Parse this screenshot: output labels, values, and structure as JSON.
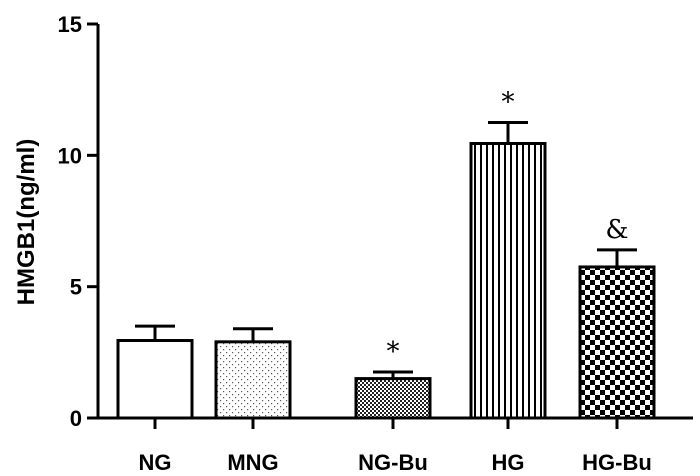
{
  "chart_data": {
    "type": "bar",
    "ylabel": "HMGB1(ng/ml)",
    "ylim": [
      0,
      15
    ],
    "yticks": [
      0,
      5,
      10,
      15
    ],
    "categories": [
      "NG",
      "MNG",
      "NG-Bu",
      "HG",
      "HG-Bu"
    ],
    "values": [
      2.95,
      2.9,
      1.5,
      10.45,
      5.75
    ],
    "error_upper": [
      0.55,
      0.5,
      0.25,
      0.8,
      0.65
    ],
    "annotations": [
      "",
      "",
      "*",
      "*",
      "&"
    ],
    "fills": [
      "white",
      "sparse-dots",
      "dense-checker",
      "vertical-stripes",
      "checker"
    ]
  }
}
